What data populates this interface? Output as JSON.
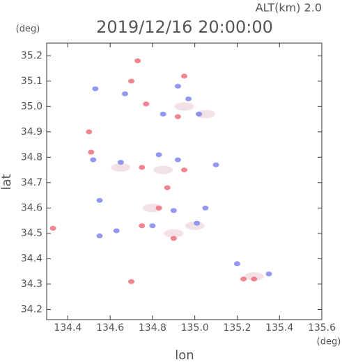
{
  "chart_data": {
    "type": "scatter",
    "title": "2019/12/16 20:00:00",
    "subtitle": "ALT(km)  2.0",
    "y_unit": "(deg)",
    "x_unit": "(deg)",
    "x_label": "lon",
    "y_label": "lat",
    "xlim": [
      134.3,
      135.6
    ],
    "ylim": [
      34.16,
      35.25
    ],
    "xticks": [
      134.4,
      134.6,
      134.8,
      {
        "value": 135,
        "label": "135.0"
      },
      135.2,
      135.4,
      135.6
    ],
    "yticks": [
      34.2,
      34.3,
      34.4,
      34.5,
      34.6,
      34.7,
      34.8,
      34.9,
      {
        "value": 35,
        "label": "35.0"
      },
      35.1,
      35.2
    ],
    "series": [
      {
        "color": "#f2dfe2",
        "x": [
          134.85,
          134.9,
          135.28,
          135.05,
          134.65,
          135.0,
          134.8,
          134.95
        ],
        "values": [
          34.75,
          34.5,
          34.33,
          34.97,
          34.76,
          34.53,
          34.6,
          35.0
        ]
      },
      {
        "color": "#7f86ee",
        "x": [
          134.53,
          134.67,
          134.92,
          134.97,
          135.02,
          134.85,
          134.52,
          134.65,
          134.83,
          134.92,
          135.1,
          134.55,
          134.9,
          135.05,
          134.63,
          134.8,
          135.01,
          135.35,
          135.2,
          134.55
        ],
        "values": [
          35.07,
          35.05,
          35.08,
          35.03,
          34.97,
          34.97,
          34.79,
          34.78,
          34.81,
          34.79,
          34.77,
          34.63,
          34.59,
          34.6,
          34.51,
          34.53,
          34.54,
          34.34,
          34.38,
          34.49
        ]
      },
      {
        "color": "#ee6f7a",
        "x": [
          134.73,
          134.7,
          134.95,
          134.77,
          134.92,
          134.5,
          134.51,
          134.75,
          134.95,
          134.87,
          134.83,
          134.75,
          134.9,
          135.28,
          134.7,
          134.33,
          135.23
        ],
        "values": [
          35.18,
          35.1,
          35.12,
          35.01,
          34.96,
          34.9,
          34.82,
          34.76,
          34.75,
          34.68,
          34.6,
          34.53,
          34.48,
          34.32,
          34.31,
          34.52,
          34.32
        ]
      }
    ]
  }
}
